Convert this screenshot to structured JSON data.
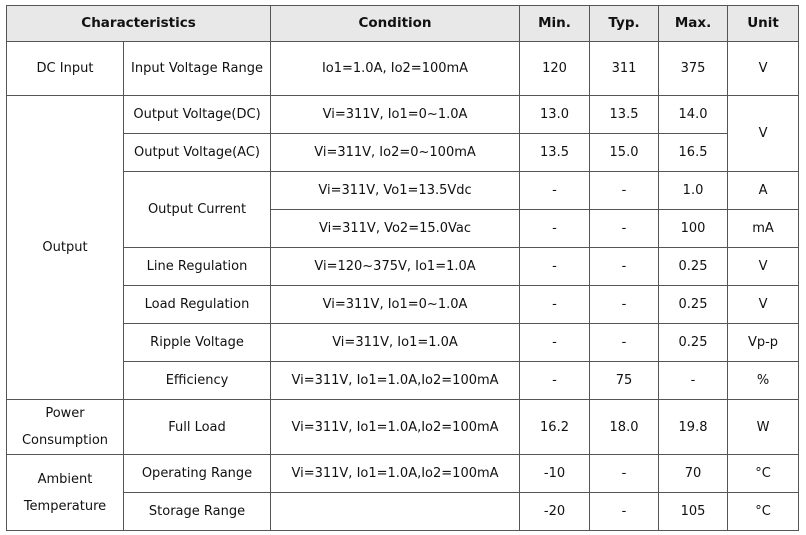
{
  "headers": {
    "characteristics": "Characteristics",
    "condition": "Condition",
    "min": "Min.",
    "typ": "Typ.",
    "max": "Max.",
    "unit": "Unit"
  },
  "groups": {
    "dc_input": "DC Input",
    "output": "Output",
    "power": "Power Consumption",
    "ambient": "Ambient Temperature"
  },
  "rows": {
    "input_voltage": {
      "param": "Input Voltage Range",
      "condition": "Io1=1.0A, Io2=100mA",
      "min": "120",
      "typ": "311",
      "max": "375",
      "unit": "V"
    },
    "out_v_dc": {
      "param": "Output Voltage(DC)",
      "condition": "Vi=311V, Io1=0~1.0A",
      "min": "13.0",
      "typ": "13.5",
      "max": "14.0"
    },
    "out_v_ac": {
      "param": "Output Voltage(AC)",
      "condition": "Vi=311V, Io2=0~100mA",
      "min": "13.5",
      "typ": "15.0",
      "max": "16.5"
    },
    "out_v_unit": "V",
    "out_current_label": "Output Current",
    "out_current_1": {
      "condition": "Vi=311V, Vo1=13.5Vdc",
      "min": "-",
      "typ": "-",
      "max": "1.0",
      "unit": "A"
    },
    "out_current_2": {
      "condition": "Vi=311V, Vo2=15.0Vac",
      "min": "-",
      "typ": "-",
      "max": "100",
      "unit": "mA"
    },
    "line_reg": {
      "param": "Line Regulation",
      "condition": "Vi=120~375V, Io1=1.0A",
      "min": "-",
      "typ": "-",
      "max": "0.25",
      "unit": "V"
    },
    "load_reg": {
      "param": "Load Regulation",
      "condition": "Vi=311V, Io1=0~1.0A",
      "min": "-",
      "typ": "-",
      "max": "0.25",
      "unit": "V"
    },
    "ripple": {
      "param": "Ripple Voltage",
      "condition": "Vi=311V, Io1=1.0A",
      "min": "-",
      "typ": "-",
      "max": "0.25",
      "unit": "Vp-p"
    },
    "efficiency": {
      "param": "Efficiency",
      "condition": "Vi=311V, Io1=1.0A,Io2=100mA",
      "min": "-",
      "typ": "75",
      "max": "-",
      "unit": "%"
    },
    "full_load": {
      "param": "Full Load",
      "condition": "Vi=311V, Io1=1.0A,Io2=100mA",
      "min": "16.2",
      "typ": "18.0",
      "max": "19.8",
      "unit": "W"
    },
    "operating": {
      "param": "Operating Range",
      "condition": "Vi=311V, Io1=1.0A,Io2=100mA",
      "min": "-10",
      "typ": "-",
      "max": "70",
      "unit": "°C"
    },
    "storage": {
      "param": "Storage Range",
      "condition": "",
      "min": "-20",
      "typ": "-",
      "max": "105",
      "unit": "°C"
    }
  }
}
